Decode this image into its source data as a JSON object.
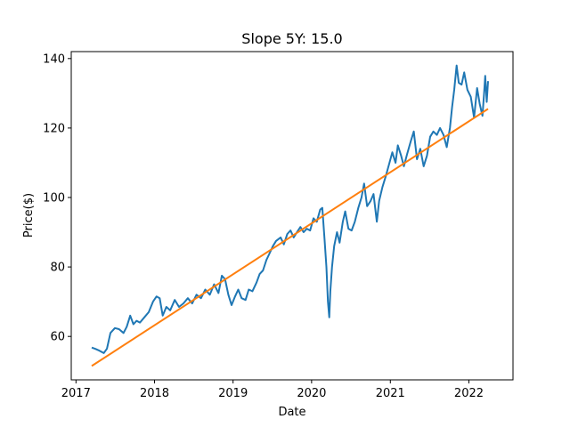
{
  "chart_data": {
    "type": "line",
    "title": "Slope 5Y: 15.0",
    "xlabel": "Date",
    "ylabel": "Price($)",
    "xlim": [
      "2016-12-10",
      "2022-07-25"
    ],
    "ylim": [
      47.5,
      142
    ],
    "x_ticks": [
      "2017",
      "2018",
      "2019",
      "2020",
      "2021",
      "2022"
    ],
    "y_ticks": [
      60,
      80,
      100,
      120,
      140
    ],
    "grid": false,
    "legend": "none",
    "series": [
      {
        "color": "#1f77b4",
        "style": "price",
        "points": [
          [
            "2017-03-15",
            56.8
          ],
          [
            "2017-04-01",
            56.4
          ],
          [
            "2017-04-20",
            55.9
          ],
          [
            "2017-05-10",
            55.2
          ],
          [
            "2017-05-25",
            56.5
          ],
          [
            "2017-06-10",
            61.0
          ],
          [
            "2017-07-01",
            62.4
          ],
          [
            "2017-07-20",
            62.1
          ],
          [
            "2017-08-10",
            61.0
          ],
          [
            "2017-08-25",
            62.8
          ],
          [
            "2017-09-10",
            66.0
          ],
          [
            "2017-09-25",
            63.5
          ],
          [
            "2017-10-10",
            64.5
          ],
          [
            "2017-10-25",
            64.0
          ],
          [
            "2017-11-15",
            65.5
          ],
          [
            "2017-12-05",
            67.0
          ],
          [
            "2017-12-25",
            70.0
          ],
          [
            "2018-01-10",
            71.5
          ],
          [
            "2018-01-25",
            71.0
          ],
          [
            "2018-02-08",
            66.0
          ],
          [
            "2018-02-25",
            68.5
          ],
          [
            "2018-03-15",
            67.5
          ],
          [
            "2018-04-05",
            70.5
          ],
          [
            "2018-04-25",
            68.5
          ],
          [
            "2018-05-15",
            69.5
          ],
          [
            "2018-06-05",
            71.0
          ],
          [
            "2018-06-25",
            69.5
          ],
          [
            "2018-07-15",
            72.0
          ],
          [
            "2018-08-05",
            71.0
          ],
          [
            "2018-08-25",
            73.5
          ],
          [
            "2018-09-15",
            72.0
          ],
          [
            "2018-10-05",
            75.0
          ],
          [
            "2018-10-25",
            72.5
          ],
          [
            "2018-11-10",
            77.5
          ],
          [
            "2018-11-25",
            76.5
          ],
          [
            "2018-12-10",
            72.0
          ],
          [
            "2018-12-25",
            69.0
          ],
          [
            "2019-01-10",
            71.5
          ],
          [
            "2019-01-25",
            73.5
          ],
          [
            "2019-02-10",
            71.0
          ],
          [
            "2019-02-28",
            70.5
          ],
          [
            "2019-03-15",
            73.5
          ],
          [
            "2019-04-01",
            73.0
          ],
          [
            "2019-04-20",
            75.5
          ],
          [
            "2019-05-05",
            78.0
          ],
          [
            "2019-05-20",
            79.0
          ],
          [
            "2019-06-05",
            82.0
          ],
          [
            "2019-06-20",
            84.0
          ],
          [
            "2019-07-05",
            86.0
          ],
          [
            "2019-07-20",
            87.5
          ],
          [
            "2019-08-10",
            88.5
          ],
          [
            "2019-08-25",
            86.5
          ],
          [
            "2019-09-10",
            89.5
          ],
          [
            "2019-09-25",
            90.5
          ],
          [
            "2019-10-10",
            88.5
          ],
          [
            "2019-10-25",
            90.0
          ],
          [
            "2019-11-10",
            91.5
          ],
          [
            "2019-11-25",
            90.0
          ],
          [
            "2019-12-10",
            91.0
          ],
          [
            "2019-12-25",
            90.5
          ],
          [
            "2020-01-10",
            94.0
          ],
          [
            "2020-01-25",
            93.0
          ],
          [
            "2020-02-10",
            96.5
          ],
          [
            "2020-02-20",
            97.0
          ],
          [
            "2020-03-01",
            88.0
          ],
          [
            "2020-03-10",
            80.0
          ],
          [
            "2020-03-17",
            70.0
          ],
          [
            "2020-03-23",
            65.5
          ],
          [
            "2020-03-28",
            73.0
          ],
          [
            "2020-04-05",
            80.0
          ],
          [
            "2020-04-15",
            86.0
          ],
          [
            "2020-04-28",
            90.0
          ],
          [
            "2020-05-10",
            87.0
          ],
          [
            "2020-05-25",
            93.0
          ],
          [
            "2020-06-05",
            96.0
          ],
          [
            "2020-06-20",
            91.0
          ],
          [
            "2020-07-05",
            90.5
          ],
          [
            "2020-07-20",
            93.0
          ],
          [
            "2020-08-05",
            97.0
          ],
          [
            "2020-08-20",
            100.0
          ],
          [
            "2020-09-01",
            104.0
          ],
          [
            "2020-09-15",
            97.5
          ],
          [
            "2020-10-01",
            99.0
          ],
          [
            "2020-10-15",
            101.0
          ],
          [
            "2020-10-30",
            93.0
          ],
          [
            "2020-11-10",
            99.0
          ],
          [
            "2020-11-25",
            103.0
          ],
          [
            "2020-12-10",
            106.0
          ],
          [
            "2020-12-28",
            110.0
          ],
          [
            "2021-01-10",
            113.0
          ],
          [
            "2021-01-25",
            110.0
          ],
          [
            "2021-02-05",
            115.0
          ],
          [
            "2021-02-20",
            112.0
          ],
          [
            "2021-03-05",
            109.0
          ],
          [
            "2021-03-20",
            112.5
          ],
          [
            "2021-04-05",
            116.0
          ],
          [
            "2021-04-20",
            119.0
          ],
          [
            "2021-05-05",
            111.0
          ],
          [
            "2021-05-20",
            114.0
          ],
          [
            "2021-06-05",
            109.0
          ],
          [
            "2021-06-20",
            112.0
          ],
          [
            "2021-07-05",
            117.5
          ],
          [
            "2021-07-20",
            119.0
          ],
          [
            "2021-08-05",
            118.0
          ],
          [
            "2021-08-20",
            120.0
          ],
          [
            "2021-09-05",
            118.0
          ],
          [
            "2021-09-20",
            114.5
          ],
          [
            "2021-10-05",
            120.0
          ],
          [
            "2021-10-15",
            126.0
          ],
          [
            "2021-10-25",
            131.0
          ],
          [
            "2021-11-05",
            138.0
          ],
          [
            "2021-11-15",
            133.0
          ],
          [
            "2021-11-28",
            132.5
          ],
          [
            "2021-12-10",
            136.0
          ],
          [
            "2021-12-25",
            131.0
          ],
          [
            "2022-01-10",
            129.0
          ],
          [
            "2022-01-25",
            123.0
          ],
          [
            "2022-02-08",
            131.5
          ],
          [
            "2022-02-20",
            127.0
          ],
          [
            "2022-03-05",
            123.5
          ],
          [
            "2022-03-12",
            129.5
          ],
          [
            "2022-03-18",
            135.0
          ],
          [
            "2022-03-25",
            127.5
          ],
          [
            "2022-03-31",
            133.5
          ]
        ]
      },
      {
        "color": "#ff7f0e",
        "style": "trend",
        "points": [
          [
            "2017-03-15",
            51.5
          ],
          [
            "2022-03-31",
            125.5
          ]
        ]
      }
    ]
  }
}
